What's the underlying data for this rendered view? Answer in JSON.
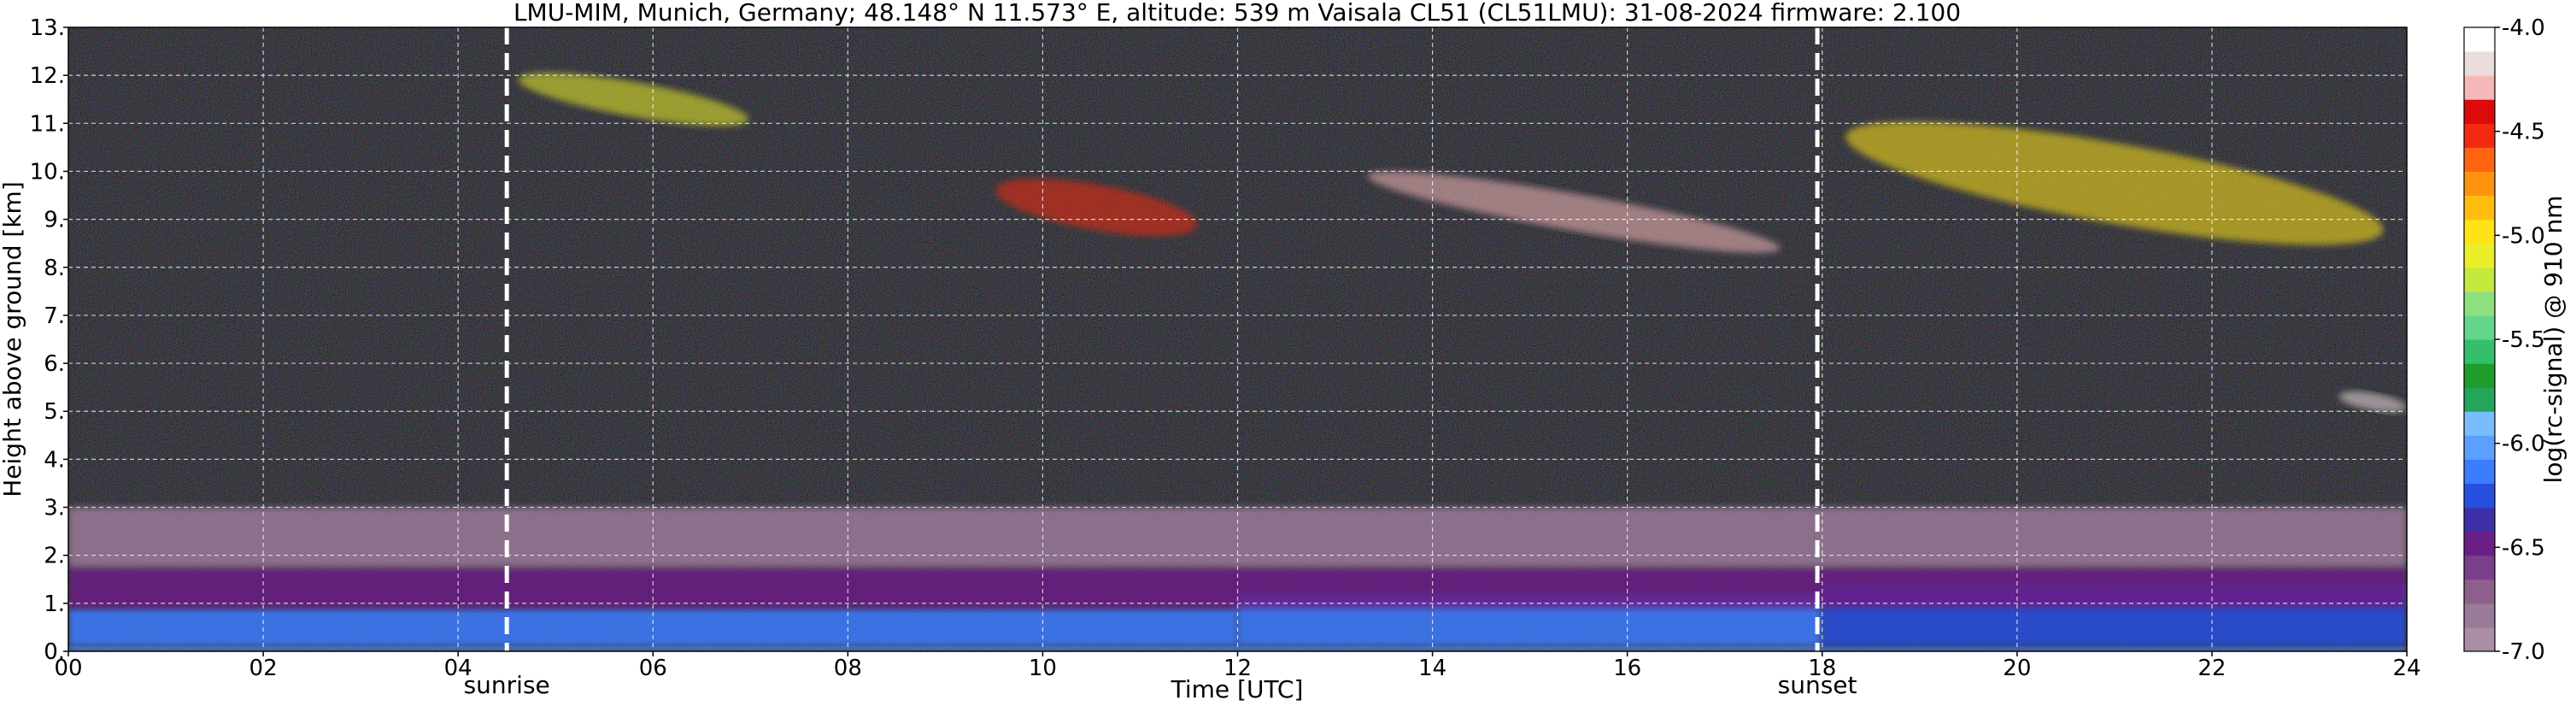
{
  "title": "LMU-MIM, Munich, Germany; 48.148° N 11.573° E, altitude: 539 m    Vaisala CL51 (CL51LMU): 31-08-2024    firmware: 2.100",
  "chart_data": {
    "type": "heatmap",
    "title": "LMU-MIM, Munich, Germany; 48.148° N 11.573° E, altitude: 539 m    Vaisala CL51 (CL51LMU): 31-08-2024    firmware: 2.100",
    "xlabel": "Time [UTC]",
    "ylabel": "Height above ground [km]",
    "xlim": [
      0,
      24
    ],
    "ylim": [
      0,
      13
    ],
    "x_ticks": [
      "00",
      "02",
      "04",
      "06",
      "08",
      "10",
      "12",
      "14",
      "16",
      "18",
      "20",
      "22",
      "24"
    ],
    "x_tick_values": [
      0,
      2,
      4,
      6,
      8,
      10,
      12,
      14,
      16,
      18,
      20,
      22,
      24
    ],
    "y_ticks": [
      "0.",
      "1.",
      "2.",
      "3.",
      "4.",
      "5.",
      "6.",
      "7.",
      "8.",
      "9.",
      "10.",
      "11.",
      "12.",
      "13."
    ],
    "y_tick_values": [
      0,
      1,
      2,
      3,
      4,
      5,
      6,
      7,
      8,
      9,
      10,
      11,
      12,
      13
    ],
    "grid": true,
    "colorbar": {
      "label": "log(rc-signal) @ 910 nm",
      "range": [
        -7.0,
        -4.0
      ],
      "ticks": [
        "-4.0",
        "-4.5",
        "-5.0",
        "-5.5",
        "-6.0",
        "-6.5",
        "-7.0"
      ],
      "tick_values": [
        -4.0,
        -4.5,
        -5.0,
        -5.5,
        -6.0,
        -6.5,
        -7.0
      ],
      "colors": [
        "#a98ea6",
        "#9a7a99",
        "#8d5f8d",
        "#7a3e8a",
        "#6a1f85",
        "#3d2fa8",
        "#2850e0",
        "#3c7cff",
        "#5ca0ff",
        "#7bbcff",
        "#23a55a",
        "#1f9d2a",
        "#34c06b",
        "#63d58c",
        "#8ee07f",
        "#c5e83f",
        "#eaee28",
        "#ffe317",
        "#ffbd10",
        "#ff9310",
        "#ff6410",
        "#f22a10",
        "#dd0a0a",
        "#f4b8b8",
        "#e9dcdc",
        "#ffffff"
      ]
    },
    "annotations": [
      {
        "text": "sunrise",
        "x": 4.5
      },
      {
        "text": "sunset",
        "x": 17.95
      }
    ],
    "layers": [
      {
        "ymin": 0.0,
        "ymax": 0.1,
        "x": [
          0,
          24
        ],
        "value": -6.0
      },
      {
        "ymin": 0.1,
        "ymax": 0.9,
        "x": [
          0,
          12
        ],
        "value": -6.1
      },
      {
        "ymin": 0.1,
        "ymax": 1.2,
        "x": [
          12,
          18
        ],
        "value": -6.15
      },
      {
        "ymin": 0.1,
        "ymax": 1.4,
        "x": [
          18,
          24
        ],
        "value": -6.2
      },
      {
        "ymin": 0.9,
        "ymax": 1.75,
        "x": [
          0,
          24
        ],
        "value": -6.5
      },
      {
        "ymin": 1.75,
        "ymax": 3.0,
        "x": [
          0,
          24
        ],
        "value": -6.8
      }
    ],
    "cloud_features": [
      {
        "x": [
          4.6,
          7.0
        ],
        "y": [
          10.7,
          12.3
        ],
        "value": -5.1
      },
      {
        "x": [
          9.5,
          11.6
        ],
        "y": [
          8.2,
          10.3
        ],
        "value": -4.5
      },
      {
        "x": [
          13.3,
          17.6
        ],
        "y": [
          8.3,
          10.0
        ],
        "value": -4.3
      },
      {
        "x": [
          18.2,
          23.8
        ],
        "y": [
          7.9,
          11.6
        ],
        "value": -5.0
      },
      {
        "x": [
          23.3,
          24.0
        ],
        "y": [
          4.8,
          5.6
        ],
        "value": -4.2
      }
    ]
  }
}
